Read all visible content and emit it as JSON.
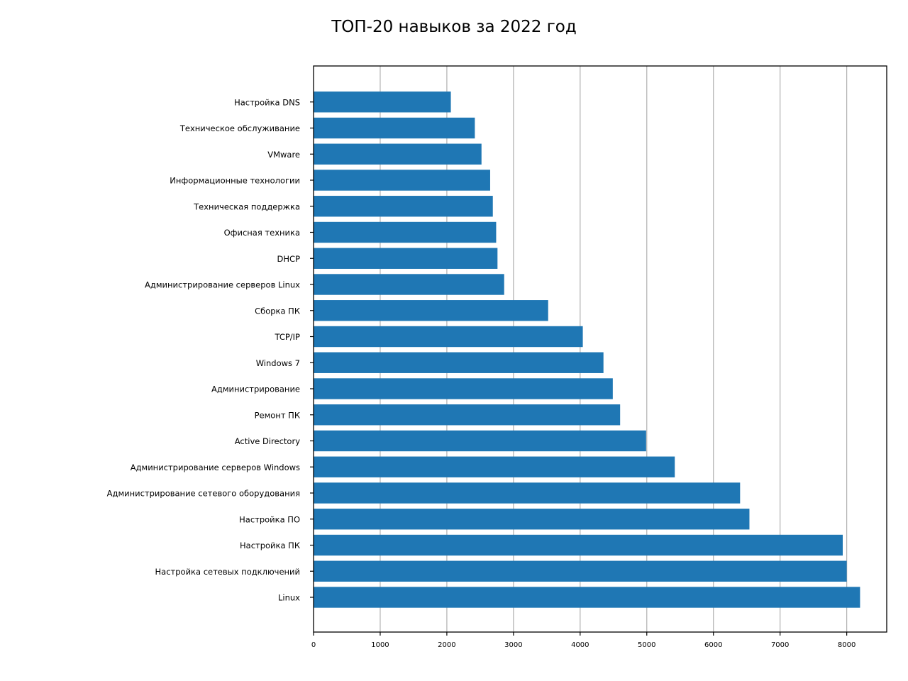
{
  "chart_data": {
    "type": "bar",
    "orientation": "horizontal",
    "title": "ТОП-20 навыков за 2022 год",
    "xlabel": "",
    "ylabel": "",
    "xlim": [
      0,
      8600
    ],
    "xticks": [
      0,
      1000,
      2000,
      3000,
      4000,
      5000,
      6000,
      7000,
      8000
    ],
    "grid": "vertical",
    "bar_color": "#1f77b4",
    "categories": [
      "Linux",
      "Настройка сетевых подключений",
      "Настройка ПК",
      "Настройка ПО",
      "Администрирование сетевого оборудования",
      "Администрирование серверов Windows",
      "Active Directory",
      "Ремонт ПК",
      "Администрирование",
      "Windows 7",
      "TCP/IP",
      "Сборка ПК",
      "Администрирование серверов Linux",
      "DHCP",
      "Офисная техника",
      "Техническая поддержка",
      "Информационные технологии",
      "VMware",
      "Техническое обслуживание",
      "Настройка DNS"
    ],
    "values": [
      8200,
      8000,
      7940,
      6540,
      6400,
      5420,
      4990,
      4600,
      4490,
      4350,
      4040,
      3520,
      2860,
      2760,
      2740,
      2690,
      2650,
      2520,
      2420,
      2060
    ]
  }
}
